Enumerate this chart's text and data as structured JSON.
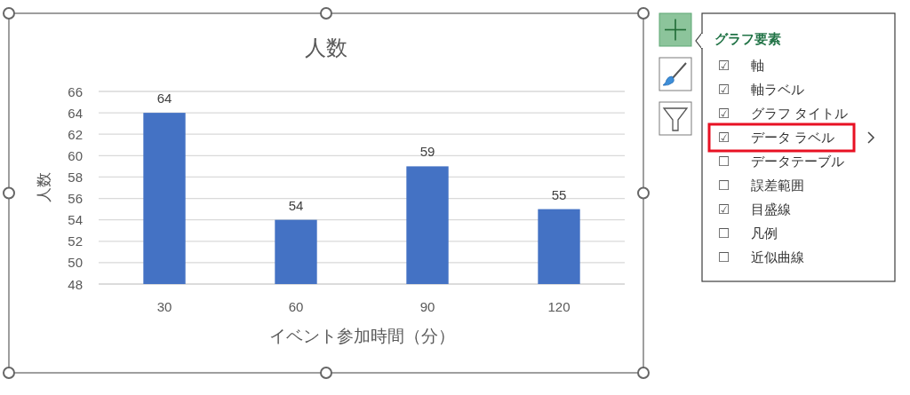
{
  "chart_data": [
    {
      "type": "bar",
      "title": "人数",
      "xlabel": "イベント参加時間（分）",
      "ylabel": "人数",
      "categories": [
        "30",
        "60",
        "90",
        "120"
      ],
      "values": [
        64,
        54,
        59,
        55
      ],
      "color": "#4472c4",
      "ylim": [
        48,
        66
      ],
      "yticks": [
        48,
        50,
        52,
        54,
        56,
        58,
        60,
        62,
        64,
        66
      ],
      "grid": "y",
      "data_labels": true
    },
    {
      "type": "other",
      "title": "グラフ要素",
      "annotations": [
        "☑ 軸",
        "☑ 軸ラベル",
        "☑ グラフ タイトル",
        "☑ データ ラベル",
        "☐ データテーブル",
        "☐ 誤差範囲",
        "☑ 目盛線",
        "☐ 凡例",
        "☐ 近似曲線"
      ]
    }
  ]
}
